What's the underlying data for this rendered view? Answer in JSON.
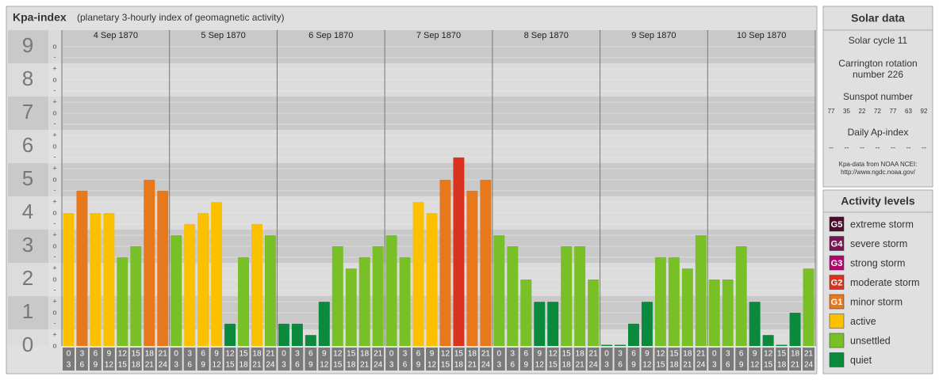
{
  "chart_data": {
    "type": "bar",
    "title": "Kpa-index",
    "subtitle": "(planetary 3-hourly index of geomagnetic activity)",
    "days": [
      "4 Sep 1870",
      "5 Sep 1870",
      "6 Sep 1870",
      "7 Sep 1870",
      "8 Sep 1870",
      "9 Sep 1870",
      "10 Sep 1870"
    ],
    "hours": [
      [
        "0",
        "3"
      ],
      [
        "3",
        "6"
      ],
      [
        "6",
        "9"
      ],
      [
        "9",
        "12"
      ],
      [
        "12",
        "15"
      ],
      [
        "15",
        "18"
      ],
      [
        "18",
        "21"
      ],
      [
        "21",
        "24"
      ]
    ],
    "values": [
      4.0,
      4.67,
      4.0,
      4.0,
      2.67,
      3.0,
      5.0,
      4.67,
      3.33,
      3.67,
      4.0,
      4.33,
      0.67,
      2.67,
      3.67,
      3.33,
      0.67,
      0.67,
      0.33,
      1.33,
      3.0,
      2.33,
      2.67,
      3.0,
      3.33,
      2.67,
      4.33,
      4.0,
      5.0,
      5.67,
      4.67,
      5.0,
      3.33,
      3.0,
      2.0,
      1.33,
      1.33,
      3.0,
      3.0,
      2.0,
      0,
      0,
      0.67,
      1.33,
      2.67,
      2.67,
      2.33,
      3.33,
      2.0,
      2.0,
      3.0,
      1.33,
      0.33,
      0,
      1.0,
      2.33
    ],
    "colors": [
      "#fbc100",
      "#e8781c",
      "#fbc100",
      "#fbc100",
      "#79bf26",
      "#79bf26",
      "#e8781c",
      "#e8781c",
      "#79bf26",
      "#fbc100",
      "#fbc100",
      "#fbc100",
      "#0b8a3d",
      "#79bf26",
      "#fbc100",
      "#79bf26",
      "#0b8a3d",
      "#0b8a3d",
      "#0b8a3d",
      "#0b8a3d",
      "#79bf26",
      "#79bf26",
      "#79bf26",
      "#79bf26",
      "#79bf26",
      "#79bf26",
      "#fbc100",
      "#fbc100",
      "#e8781c",
      "#d8331f",
      "#e8781c",
      "#e8781c",
      "#79bf26",
      "#79bf26",
      "#79bf26",
      "#0b8a3d",
      "#0b8a3d",
      "#79bf26",
      "#79bf26",
      "#79bf26",
      "#0b8a3d",
      "#0b8a3d",
      "#0b8a3d",
      "#0b8a3d",
      "#79bf26",
      "#79bf26",
      "#79bf26",
      "#79bf26",
      "#79bf26",
      "#79bf26",
      "#79bf26",
      "#0b8a3d",
      "#0b8a3d",
      "#0b8a3d",
      "#0b8a3d",
      "#79bf26"
    ],
    "ylim": [
      0,
      9.5
    ],
    "yticks": [
      0,
      1,
      2,
      3,
      4,
      5,
      6,
      7,
      8,
      9
    ],
    "minor_ticks": [
      {
        "value": 0,
        "label": "o"
      },
      {
        "value": 0.33,
        "label": "+"
      },
      {
        "value": 0.67,
        "label": "-"
      },
      {
        "value": 1,
        "label": "o"
      },
      {
        "value": 1.33,
        "label": "+"
      },
      {
        "value": 1.67,
        "label": "-"
      },
      {
        "value": 2,
        "label": "o"
      },
      {
        "value": 2.33,
        "label": "+"
      },
      {
        "value": 2.67,
        "label": "-"
      },
      {
        "value": 3,
        "label": "o"
      },
      {
        "value": 3.33,
        "label": "+"
      },
      {
        "value": 3.67,
        "label": "-"
      },
      {
        "value": 4,
        "label": "o"
      },
      {
        "value": 4.33,
        "label": "+"
      },
      {
        "value": 4.67,
        "label": "-"
      },
      {
        "value": 5,
        "label": "o"
      },
      {
        "value": 5.33,
        "label": "+"
      },
      {
        "value": 5.67,
        "label": "-"
      },
      {
        "value": 6,
        "label": "o"
      },
      {
        "value": 6.33,
        "label": "+"
      },
      {
        "value": 6.67,
        "label": "-"
      },
      {
        "value": 7,
        "label": "o"
      },
      {
        "value": 7.33,
        "label": "+"
      },
      {
        "value": 7.67,
        "label": "-"
      },
      {
        "value": 8,
        "label": "o"
      },
      {
        "value": 8.33,
        "label": "+"
      },
      {
        "value": 8.67,
        "label": "-"
      },
      {
        "value": 9,
        "label": "o"
      }
    ],
    "grid": true
  },
  "solar": {
    "title": "Solar data",
    "cycle": "Solar cycle 11",
    "carrington": [
      "Carrington rotation",
      "number 226"
    ],
    "sunspot_title": "Sunspot number",
    "sunspots": [
      77,
      35,
      22,
      72,
      77,
      63,
      92
    ],
    "ap_title": "Daily Ap-index",
    "ap": [
      "--",
      "--",
      "--",
      "--",
      "--",
      "--",
      "--"
    ],
    "source": [
      "Kpa-data from NOAA NCEI:",
      "http://www.ngdc.noaa.gov/"
    ]
  },
  "levels": {
    "title": "Activity levels",
    "items": [
      {
        "badge": "G5",
        "label": "extreme storm",
        "color": "#4d0b2c"
      },
      {
        "badge": "G4",
        "label": "severe storm",
        "color": "#7b1453"
      },
      {
        "badge": "G3",
        "label": "strong storm",
        "color": "#b0086e"
      },
      {
        "badge": "G2",
        "label": "moderate storm",
        "color": "#d8331f"
      },
      {
        "badge": "G1",
        "label": "minor storm",
        "color": "#e8781c"
      },
      {
        "label": "active",
        "color": "#fbc100"
      },
      {
        "label": "unsettled",
        "color": "#79bf26"
      },
      {
        "label": "quiet",
        "color": "#0b8a3d"
      }
    ]
  }
}
